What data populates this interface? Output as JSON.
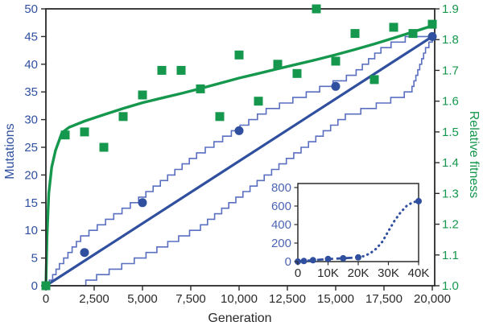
{
  "figure": {
    "description": "Mutations and relative fitness versus generation with long-term inset"
  },
  "colors": {
    "blue": "#30509f",
    "light_blue_steps": "#5a6fc0",
    "green": "#15974d",
    "axis": "#2a2a2a",
    "inset_y_label": "#4d64b4"
  },
  "axes": {
    "x": {
      "label": "Generation",
      "tick_labels": [
        "0",
        "2,500",
        "5,000",
        "7,500",
        "10,000",
        "12,500",
        "15,000",
        "17,500",
        "20,000"
      ],
      "tick_values": [
        0,
        2500,
        5000,
        7500,
        10000,
        12500,
        15000,
        17500,
        20000
      ],
      "range": [
        0,
        20000
      ]
    },
    "y_left": {
      "label": "Mutations",
      "tick_labels": [
        "0",
        "5",
        "10",
        "15",
        "20",
        "25",
        "30",
        "35",
        "40",
        "45",
        "50"
      ],
      "tick_values": [
        0,
        5,
        10,
        15,
        20,
        25,
        30,
        35,
        40,
        45,
        50
      ],
      "range": [
        0,
        50
      ]
    },
    "y_right": {
      "label": "Relative fitness",
      "tick_labels": [
        "1.0",
        "1.1",
        "1.2",
        "1.3",
        "1.4",
        "1.5",
        "1.6",
        "1.7",
        "1.8",
        "1.9"
      ],
      "tick_values": [
        1.0,
        1.1,
        1.2,
        1.3,
        1.4,
        1.5,
        1.6,
        1.7,
        1.8,
        1.9
      ],
      "range": [
        1.0,
        1.9
      ]
    }
  },
  "chart_data": {
    "type": "combo",
    "grid": false,
    "fitness_squares": {
      "type": "scatter",
      "marker": "square",
      "color": "#15974d",
      "axis": "y_right",
      "x": [
        0,
        1000,
        2000,
        3000,
        4000,
        5000,
        6000,
        7000,
        8000,
        9000,
        10000,
        11000,
        12000,
        13000,
        14000,
        15000,
        16000,
        17000,
        18000,
        19000,
        20000
      ],
      "y": [
        1.0,
        1.49,
        1.5,
        1.45,
        1.55,
        1.62,
        1.7,
        1.7,
        1.64,
        1.55,
        1.75,
        1.6,
        1.72,
        1.69,
        1.9,
        1.73,
        1.82,
        1.67,
        1.84,
        1.82,
        1.85
      ]
    },
    "fitness_curve": {
      "type": "line",
      "color": "#15974d",
      "axis": "y_right",
      "points": [
        [
          0,
          1.0
        ],
        [
          60,
          1.16
        ],
        [
          150,
          1.3
        ],
        [
          300,
          1.385
        ],
        [
          500,
          1.44
        ],
        [
          830,
          1.497
        ],
        [
          1200,
          1.515
        ],
        [
          2000,
          1.535
        ],
        [
          3000,
          1.556
        ],
        [
          4000,
          1.576
        ],
        [
          5000,
          1.595
        ],
        [
          6000,
          1.61
        ],
        [
          7000,
          1.625
        ],
        [
          8000,
          1.641
        ],
        [
          9000,
          1.658
        ],
        [
          10000,
          1.675
        ],
        [
          11000,
          1.69
        ],
        [
          12000,
          1.705
        ],
        [
          13000,
          1.72
        ],
        [
          14000,
          1.735
        ],
        [
          15000,
          1.751
        ],
        [
          16000,
          1.768
        ],
        [
          17000,
          1.786
        ],
        [
          18000,
          1.805
        ],
        [
          19000,
          1.825
        ],
        [
          20000,
          1.845
        ]
      ]
    },
    "mutation_points": {
      "type": "scatter",
      "marker": "circle",
      "color": "#30509f",
      "axis": "y_left",
      "x": [
        2000,
        5000,
        10000,
        15000,
        20000
      ],
      "y": [
        6,
        15,
        28,
        36,
        45
      ]
    },
    "mutation_fit_line": {
      "type": "line",
      "color": "#30509f",
      "axis": "y_left",
      "points": [
        [
          0,
          0
        ],
        [
          20000,
          45
        ]
      ]
    },
    "mutation_upper_step": {
      "type": "step",
      "color": "#5a6fc0",
      "axis": "y_left",
      "knots": [
        [
          0,
          0
        ],
        [
          700,
          4
        ],
        [
          1800,
          9
        ],
        [
          4800,
          16
        ],
        [
          7800,
          24
        ],
        [
          11400,
          32
        ],
        [
          15900,
          38.5
        ],
        [
          17500,
          43.5
        ],
        [
          18600,
          45
        ],
        [
          20000,
          45
        ]
      ]
    },
    "mutation_lower_step": {
      "type": "step",
      "color": "#5a6fc0",
      "axis": "y_left",
      "knots": [
        [
          0,
          0
        ],
        [
          1600,
          0
        ],
        [
          2300,
          1.5
        ],
        [
          4900,
          5.5
        ],
        [
          8000,
          11
        ],
        [
          11300,
          20
        ],
        [
          15500,
          31
        ],
        [
          17500,
          33.5
        ],
        [
          18900,
          35.5
        ],
        [
          19650,
          43
        ],
        [
          20000,
          45
        ]
      ]
    },
    "inset": {
      "type": "line",
      "xlim": [
        0,
        40000
      ],
      "ylim": [
        0,
        800
      ],
      "x_tick_labels": [
        "0",
        "10K",
        "20K",
        "30K",
        "40K"
      ],
      "x_tick_values": [
        0,
        10000,
        20000,
        30000,
        40000
      ],
      "y_tick_labels": [
        "0",
        "200",
        "400",
        "600",
        "800"
      ],
      "y_tick_values": [
        0,
        200,
        400,
        600,
        800
      ],
      "dashed_points": [
        [
          0,
          0
        ],
        [
          2000,
          6
        ],
        [
          5000,
          15
        ],
        [
          10000,
          28
        ],
        [
          15000,
          36
        ],
        [
          20000,
          45
        ]
      ],
      "dotted_points": [
        [
          20000,
          45
        ],
        [
          22000,
          60
        ],
        [
          24000,
          90
        ],
        [
          26000,
          140
        ],
        [
          28000,
          215
        ],
        [
          30000,
          330
        ],
        [
          32000,
          440
        ],
        [
          34000,
          530
        ],
        [
          36000,
          600
        ],
        [
          38000,
          640
        ],
        [
          40000,
          653
        ]
      ],
      "marker_points": [
        [
          0,
          0
        ],
        [
          2000,
          6
        ],
        [
          5000,
          15
        ],
        [
          10000,
          28
        ],
        [
          15000,
          36
        ],
        [
          20000,
          45
        ],
        [
          40000,
          653
        ]
      ]
    }
  }
}
